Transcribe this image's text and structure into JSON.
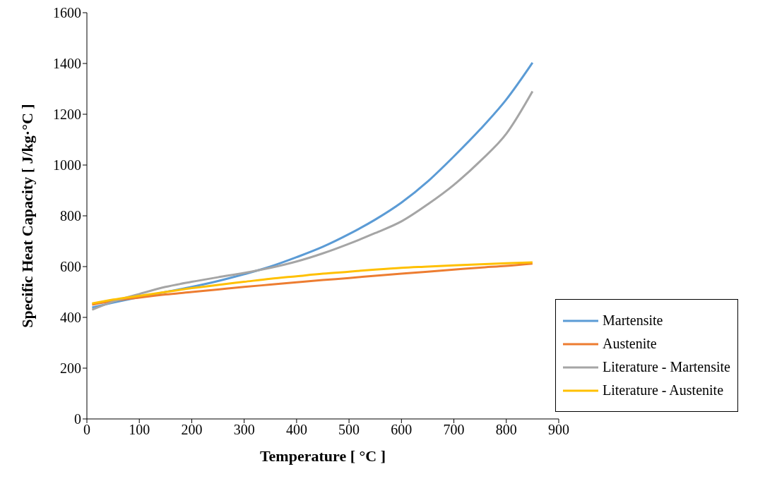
{
  "chart_data": {
    "type": "line",
    "xlabel": "Temperature [ °C ]",
    "ylabel": "Specific Heat Capacity [ J/kg·°C ]",
    "x": [
      10,
      50,
      100,
      150,
      200,
      250,
      300,
      350,
      400,
      450,
      500,
      550,
      600,
      650,
      700,
      750,
      800,
      850
    ],
    "series": [
      {
        "name": "Martensite",
        "color": "#5b9bd5",
        "values": [
          439,
          458,
          480,
          500,
          520,
          543,
          570,
          600,
          637,
          678,
          728,
          785,
          852,
          935,
          1034,
          1140,
          1258,
          1403
        ]
      },
      {
        "name": "Austenite",
        "color": "#ed7d31",
        "values": [
          450,
          465,
          478,
          490,
          500,
          510,
          520,
          529,
          538,
          547,
          555,
          564,
          572,
          580,
          588,
          596,
          603,
          612
        ]
      },
      {
        "name": "Literature - Martensite",
        "color": "#a5a5a5",
        "values": [
          430,
          462,
          492,
          520,
          540,
          558,
          575,
          595,
          620,
          652,
          690,
          732,
          778,
          845,
          922,
          1015,
          1123,
          1290
        ]
      },
      {
        "name": "Literature - Austenite",
        "color": "#ffc000",
        "values": [
          455,
          470,
          485,
          500,
          515,
          528,
          540,
          552,
          562,
          572,
          580,
          588,
          595,
          600,
          605,
          609,
          613,
          617
        ]
      }
    ],
    "xlim": [
      0,
      900
    ],
    "xticks": [
      0,
      100,
      200,
      300,
      400,
      500,
      600,
      700,
      800,
      900
    ],
    "ylim": [
      0,
      1600
    ],
    "yticks": [
      0,
      200,
      400,
      600,
      800,
      1000,
      1200,
      1400,
      1600
    ],
    "legend": "bottom right",
    "marker": "none",
    "line_style": "solid"
  }
}
